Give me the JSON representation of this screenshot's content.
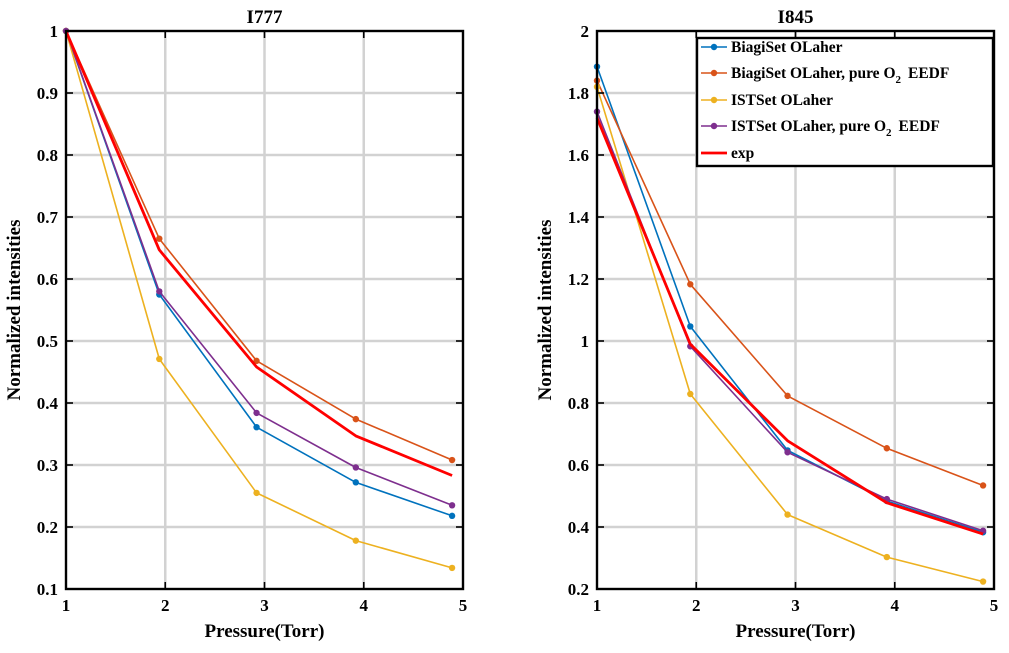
{
  "chart_data": [
    {
      "type": "line",
      "title": "I777",
      "xlabel": "Pressure(Torr)",
      "ylabel": "Normalized intensities",
      "xlim": [
        1,
        5
      ],
      "ylim": [
        0.1,
        1
      ],
      "xticks": [
        "1",
        "2",
        "3",
        "4",
        "5"
      ],
      "yticks": [
        "0.1",
        "0.2",
        "0.3",
        "0.4",
        "0.5",
        "0.6",
        "0.7",
        "0.8",
        "0.9",
        "1"
      ],
      "grid": true,
      "x": [
        1,
        1.94,
        2.92,
        3.92,
        4.89
      ],
      "series": [
        {
          "name": "BiagiSet OLaher",
          "color": "#0072bd",
          "marker": "dot",
          "values": [
            1.0,
            0.575,
            0.361,
            0.272,
            0.218
          ]
        },
        {
          "name": "BiagiSet OLaher, pure O2 EEDF",
          "color": "#d95319",
          "marker": "dot",
          "values": [
            1.0,
            0.665,
            0.468,
            0.374,
            0.308
          ]
        },
        {
          "name": "ISTSet OLaher",
          "color": "#edb120",
          "marker": "dot",
          "values": [
            1.0,
            0.471,
            0.255,
            0.178,
            0.134
          ]
        },
        {
          "name": "ISTSet OLaher, pure O2 EEDF",
          "color": "#7e2f8e",
          "marker": "dot",
          "values": [
            1.0,
            0.58,
            0.384,
            0.296,
            0.235
          ]
        },
        {
          "name": "exp",
          "color": "#ff0000",
          "marker": "none",
          "values": [
            1.0,
            0.647,
            0.458,
            0.347,
            0.283
          ]
        }
      ]
    },
    {
      "type": "line",
      "title": "I845",
      "xlabel": "Pressure(Torr)",
      "ylabel": "Normalized intensities",
      "xlim": [
        1,
        5
      ],
      "ylim": [
        0.2,
        2
      ],
      "xticks": [
        "1",
        "2",
        "3",
        "4",
        "5"
      ],
      "yticks": [
        "0.2",
        "0.4",
        "0.6",
        "0.8",
        "1",
        "1.2",
        "1.4",
        "1.6",
        "1.8",
        "2"
      ],
      "grid": true,
      "legend_position": "top-right",
      "x": [
        1,
        1.94,
        2.92,
        3.92,
        4.89
      ],
      "series": [
        {
          "name": "BiagiSet OLaher",
          "color": "#0072bd",
          "marker": "dot",
          "values": [
            1.885,
            1.047,
            0.647,
            0.484,
            0.383
          ]
        },
        {
          "name": "BiagiSet OLaher, pure O2 EEDF",
          "color": "#d95319",
          "marker": "dot",
          "values": [
            1.84,
            1.183,
            0.823,
            0.654,
            0.534
          ]
        },
        {
          "name": "ISTSet OLaher",
          "color": "#edb120",
          "marker": "dot",
          "values": [
            1.82,
            0.829,
            0.44,
            0.303,
            0.224
          ]
        },
        {
          "name": "ISTSet OLaher, pure O2 EEDF",
          "color": "#7e2f8e",
          "marker": "dot",
          "values": [
            1.74,
            0.983,
            0.641,
            0.49,
            0.388
          ]
        },
        {
          "name": "exp",
          "color": "#ff0000",
          "marker": "none",
          "values": [
            1.72,
            0.99,
            0.678,
            0.478,
            0.377
          ]
        }
      ]
    }
  ]
}
